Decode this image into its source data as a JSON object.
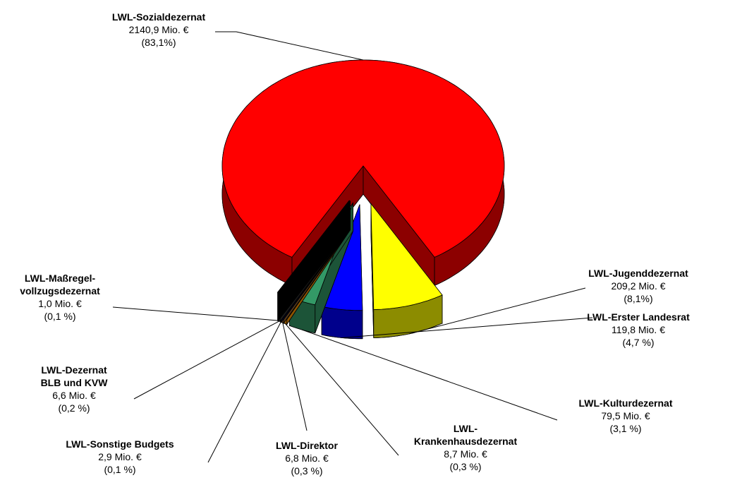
{
  "chart_data": {
    "type": "pie",
    "categories": [
      "LWL-Sozialdezernat",
      "LWL-Jugenddezernat",
      "LWL-Erster Landesrat",
      "LWL-Kulturdezernat",
      "LWL-\nKrankenhausdezernat",
      "LWL-Direktor",
      "LWL-Sonstige Budgets",
      "LWL-Dezernat\nBLB und KVW",
      "LWL-Maßregel-\nvollzugsdezernat"
    ],
    "values": [
      2140.9,
      209.2,
      119.8,
      79.5,
      8.7,
      6.8,
      2.9,
      6.6,
      1.0
    ],
    "value_labels": [
      "2140,9 Mio. €",
      "209,2 Mio. €",
      "119,8 Mio. €",
      "79,5 Mio. €",
      "8,7 Mio. €",
      "6,8 Mio. €",
      "2,9 Mio. €",
      "6,6 Mio. €",
      "1,0 Mio. €"
    ],
    "percent_labels": [
      "(83,1%)",
      "(8,1%)",
      "(4,7 %)",
      "(3,1 %)",
      "(0,3 %)",
      "(0,3 %)",
      "(0,1 %)",
      "(0,2 %)",
      "(0,1 %)"
    ],
    "colors": [
      "#ff0000",
      "#ffff00",
      "#0000ff",
      "#339966",
      "#ff9900",
      "#996633",
      "#000080",
      "#333333",
      "#000000"
    ]
  }
}
